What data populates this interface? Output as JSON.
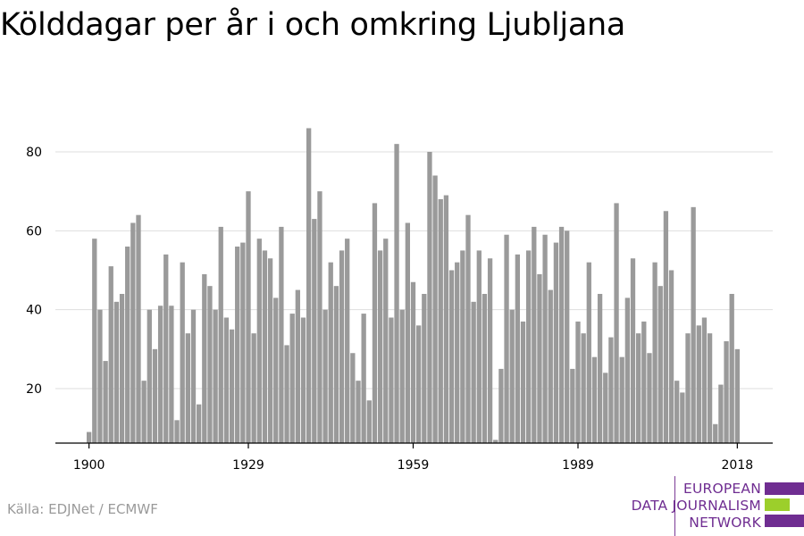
{
  "title": "Kölddagar per år i och omkring Ljubljana",
  "source": "Källa: EDJNet / ECMWF",
  "logo": {
    "lines": [
      "EUROPEAN",
      "DATA JOURNALISM",
      "NETWORK"
    ],
    "colors": {
      "purple": "#6f2d91",
      "green": "#9ccf2b"
    }
  },
  "colors": {
    "bar": "#9a9a9a",
    "grid": "#dedede",
    "axis": "#000000"
  },
  "chart_data": {
    "type": "bar",
    "title": "Kölddagar per år i och omkring Ljubljana",
    "xlabel": "",
    "ylabel": "",
    "x_start": 1900,
    "x_end": 2018,
    "xticks": [
      1900,
      1929,
      1959,
      1989,
      2018
    ],
    "yticks": [
      20,
      40,
      60,
      80
    ],
    "ylim": [
      6,
      88
    ],
    "grid": true,
    "values": [
      9,
      58,
      40,
      27,
      51,
      42,
      44,
      56,
      62,
      64,
      22,
      40,
      30,
      41,
      54,
      41,
      12,
      52,
      34,
      40,
      16,
      49,
      46,
      40,
      61,
      38,
      35,
      56,
      57,
      70,
      34,
      58,
      55,
      53,
      43,
      61,
      31,
      39,
      45,
      38,
      86,
      63,
      70,
      40,
      52,
      46,
      55,
      58,
      29,
      22,
      39,
      17,
      67,
      55,
      58,
      38,
      82,
      40,
      62,
      47,
      36,
      44,
      80,
      74,
      68,
      69,
      50,
      52,
      55,
      64,
      42,
      55,
      44,
      53,
      7,
      25,
      59,
      40,
      54,
      37,
      55,
      61,
      49,
      59,
      45,
      57,
      61,
      60,
      25,
      37,
      34,
      52,
      28,
      44,
      24,
      33,
      67,
      28,
      43,
      53,
      34,
      37,
      29,
      52,
      46,
      65,
      50,
      22,
      19,
      34,
      66,
      36,
      38,
      34,
      11,
      21,
      32,
      44,
      30
    ]
  }
}
